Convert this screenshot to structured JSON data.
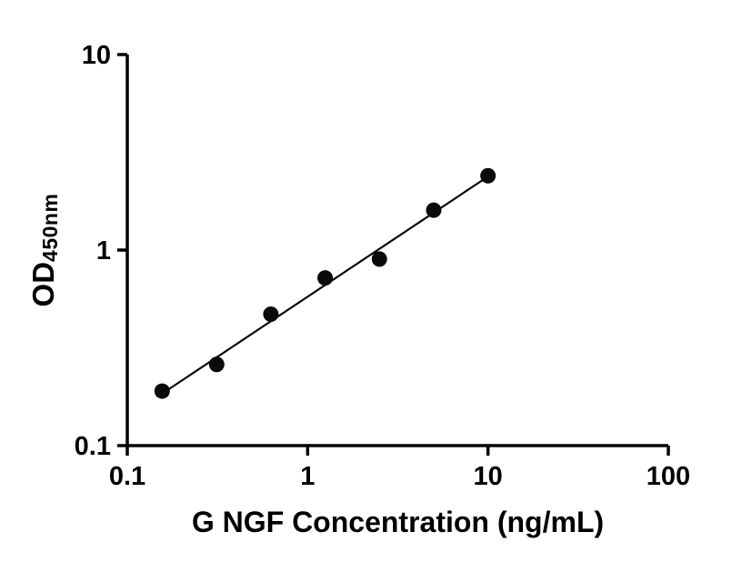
{
  "chart_data": {
    "type": "scatter",
    "title": "",
    "xlabel": "G NGF Concentration (ng/mL)",
    "ylabel": "OD450nm",
    "ylabel_main": "OD",
    "ylabel_sub": "450nm",
    "x_scale": "log",
    "y_scale": "log",
    "xlim": [
      0.1,
      100
    ],
    "ylim": [
      0.1,
      10
    ],
    "x_ticks": [
      0.1,
      1,
      10,
      100
    ],
    "x_tick_labels": [
      "0.1",
      "1",
      "10",
      "100"
    ],
    "y_ticks": [
      0.1,
      1,
      10
    ],
    "y_tick_labels": [
      "0.1",
      "1",
      "10"
    ],
    "points": {
      "x": [
        0.156,
        0.313,
        0.625,
        1.25,
        2.5,
        5,
        10
      ],
      "y": [
        0.19,
        0.26,
        0.47,
        0.72,
        0.9,
        1.6,
        2.4
      ]
    },
    "fit_line": {
      "x1": 0.15,
      "y1": 0.18,
      "x2": 10.5,
      "y2": 2.45
    },
    "marker_color": "#0a0a0a",
    "line_color": "#0a0a0a",
    "axis_color": "#000000",
    "grid": false,
    "legend": false
  }
}
